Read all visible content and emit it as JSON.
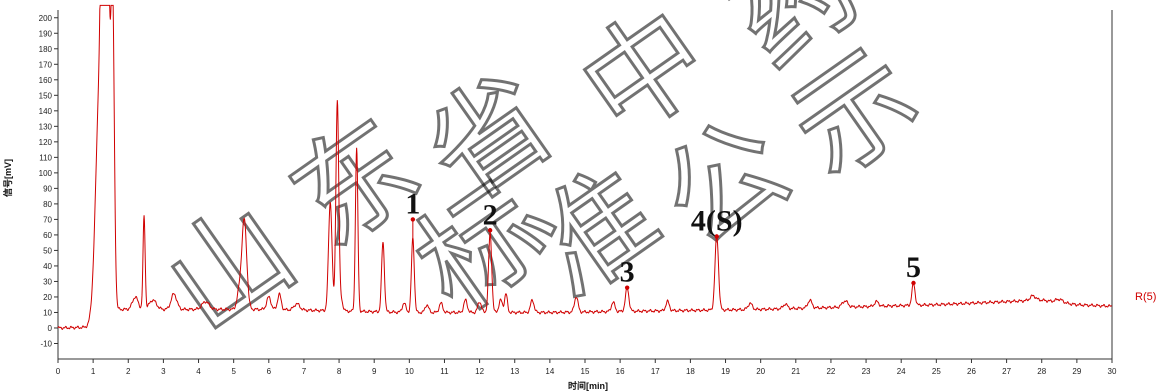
{
  "chart_data": {
    "type": "line",
    "xlabel": "时间[min]",
    "ylabel": "信号[mV]",
    "xlim": [
      0,
      30
    ],
    "ylim": [
      -20,
      205
    ],
    "x_ticks": [
      0,
      1,
      2,
      3,
      4,
      5,
      6,
      7,
      8,
      9,
      10,
      11,
      12,
      13,
      14,
      15,
      16,
      17,
      18,
      19,
      20,
      21,
      22,
      23,
      24,
      25,
      26,
      27,
      28,
      29,
      30
    ],
    "y_ticks": [
      -10,
      0,
      10,
      20,
      30,
      40,
      50,
      60,
      70,
      80,
      90,
      100,
      110,
      120,
      130,
      140,
      150,
      160,
      170,
      180,
      190,
      200
    ],
    "grid": false,
    "series_color": "#d00000",
    "series": [
      {
        "name": "R(5)",
        "baseline": [
          [
            0,
            0
          ],
          [
            1,
            0.5
          ],
          [
            1.6,
            12
          ],
          [
            3,
            12
          ],
          [
            6,
            12
          ],
          [
            10,
            10
          ],
          [
            14,
            10
          ],
          [
            20,
            12
          ],
          [
            25,
            15
          ],
          [
            28,
            18
          ],
          [
            29,
            15
          ],
          [
            30,
            14
          ]
        ],
        "peaks": [
          {
            "t": 1.28,
            "h": 210,
            "w": 0.05
          },
          {
            "t": 1.42,
            "h": 210,
            "w": 0.05
          },
          {
            "t": 1.55,
            "h": 210,
            "w": 0.05
          },
          {
            "t": 1.2,
            "h": 160,
            "w": 0.12
          },
          {
            "t": 2.45,
            "h": 60,
            "w": 0.03
          },
          {
            "t": 2.2,
            "h": 8,
            "w": 0.08
          },
          {
            "t": 2.7,
            "h": 6,
            "w": 0.1
          },
          {
            "t": 3.3,
            "h": 10,
            "w": 0.08
          },
          {
            "t": 4.2,
            "h": 5,
            "w": 0.1
          },
          {
            "t": 5.3,
            "h": 58,
            "w": 0.07
          },
          {
            "t": 5.15,
            "h": 10,
            "w": 0.06
          },
          {
            "t": 6.0,
            "h": 8,
            "w": 0.06
          },
          {
            "t": 6.3,
            "h": 10,
            "w": 0.05
          },
          {
            "t": 6.8,
            "h": 4,
            "w": 0.08
          },
          {
            "t": 7.75,
            "h": 70,
            "w": 0.05
          },
          {
            "t": 7.95,
            "h": 135,
            "w": 0.04
          },
          {
            "t": 8.05,
            "h": 8,
            "w": 0.05
          },
          {
            "t": 8.5,
            "h": 105,
            "w": 0.035
          },
          {
            "t": 9.25,
            "h": 45,
            "w": 0.04
          },
          {
            "t": 9.85,
            "h": 6,
            "w": 0.05
          },
          {
            "t": 10.1,
            "h": 48,
            "w": 0.04
          },
          {
            "t": 10.5,
            "h": 5,
            "w": 0.05
          },
          {
            "t": 10.9,
            "h": 6,
            "w": 0.05
          },
          {
            "t": 11.6,
            "h": 8,
            "w": 0.05
          },
          {
            "t": 12.0,
            "h": 7,
            "w": 0.05
          },
          {
            "t": 12.3,
            "h": 51,
            "w": 0.045
          },
          {
            "t": 12.6,
            "h": 8,
            "w": 0.05
          },
          {
            "t": 12.75,
            "h": 12,
            "w": 0.04
          },
          {
            "t": 13.5,
            "h": 8,
            "w": 0.05
          },
          {
            "t": 14.75,
            "h": 10,
            "w": 0.05
          },
          {
            "t": 15.8,
            "h": 6,
            "w": 0.05
          },
          {
            "t": 16.2,
            "h": 15,
            "w": 0.05
          },
          {
            "t": 17.35,
            "h": 6,
            "w": 0.05
          },
          {
            "t": 18.75,
            "h": 48,
            "w": 0.05
          },
          {
            "t": 19.7,
            "h": 4,
            "w": 0.06
          },
          {
            "t": 20.7,
            "h": 3,
            "w": 0.06
          },
          {
            "t": 21.4,
            "h": 5,
            "w": 0.06
          },
          {
            "t": 22.4,
            "h": 4,
            "w": 0.08
          },
          {
            "t": 23.3,
            "h": 3,
            "w": 0.06
          },
          {
            "t": 24.35,
            "h": 14,
            "w": 0.045
          },
          {
            "t": 27.75,
            "h": 3,
            "w": 0.08
          },
          {
            "t": 28.5,
            "h": 2,
            "w": 0.1
          }
        ]
      }
    ],
    "annotations": [
      {
        "label": "1",
        "x": 10.1,
        "y": 70
      },
      {
        "label": "2",
        "x": 12.3,
        "y": 63
      },
      {
        "label": "3",
        "x": 16.2,
        "y": 26
      },
      {
        "label": "4(S)",
        "x": 18.75,
        "y": 59
      },
      {
        "label": "5",
        "x": 24.35,
        "y": 29
      }
    ],
    "watermark": "山东省中药标准公示"
  }
}
